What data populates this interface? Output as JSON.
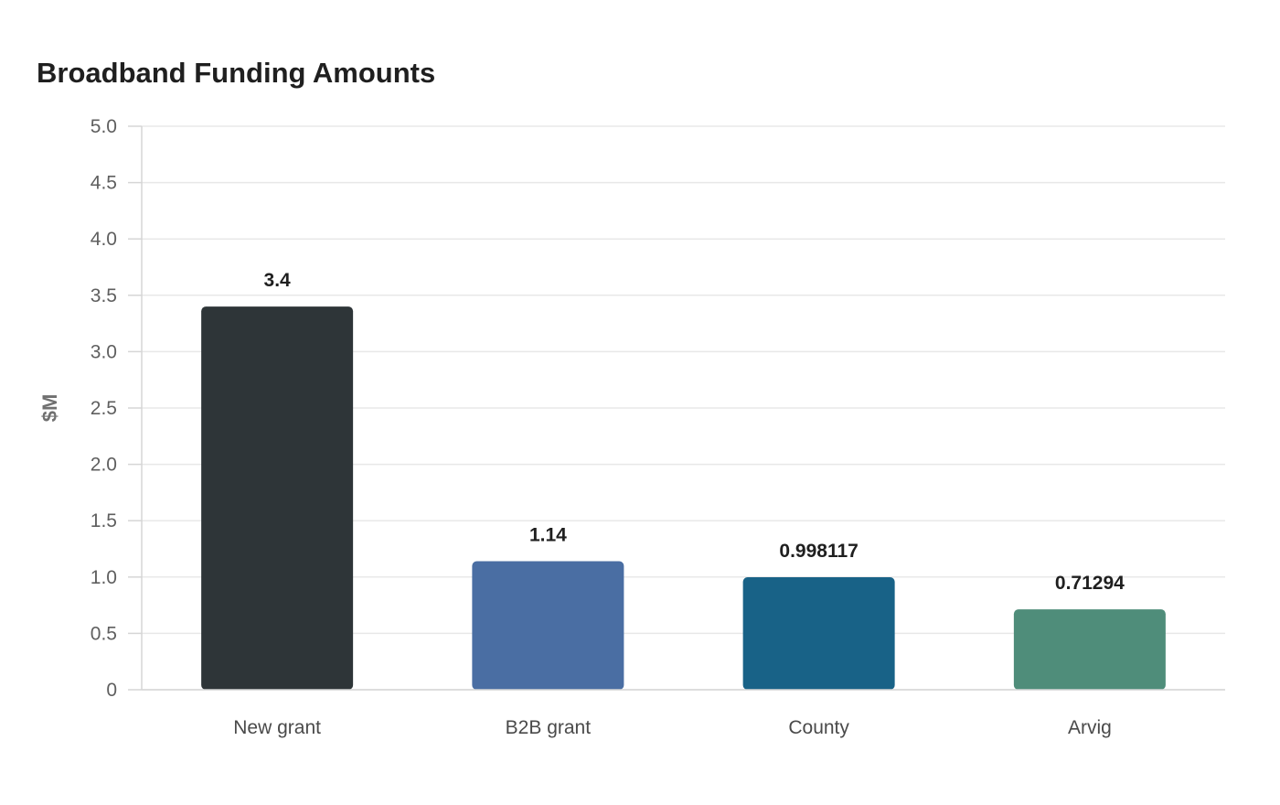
{
  "chart_data": {
    "type": "bar",
    "title": "Broadband Funding Amounts",
    "xlabel": "",
    "ylabel": "$M",
    "categories": [
      "New grant",
      "B2B grant",
      "County",
      "Arvig"
    ],
    "values": [
      3.4,
      1.14,
      0.998117,
      0.71294
    ],
    "value_labels": [
      "3.4",
      "1.14",
      "0.998117",
      "0.71294"
    ],
    "ylim": [
      0,
      5
    ],
    "yticks": [
      0,
      0.5,
      1.0,
      1.5,
      2.0,
      2.5,
      3.0,
      3.5,
      4.0,
      4.5,
      5.0
    ],
    "ytick_labels": [
      "0",
      "0.5",
      "1.0",
      "1.5",
      "2.0",
      "2.5",
      "3.0",
      "3.5",
      "4.0",
      "4.5",
      "5.0"
    ],
    "grid": true,
    "legend": "none",
    "colors": [
      "#2e3538",
      "#4a6ea3",
      "#186287",
      "#4f8d7a"
    ]
  }
}
